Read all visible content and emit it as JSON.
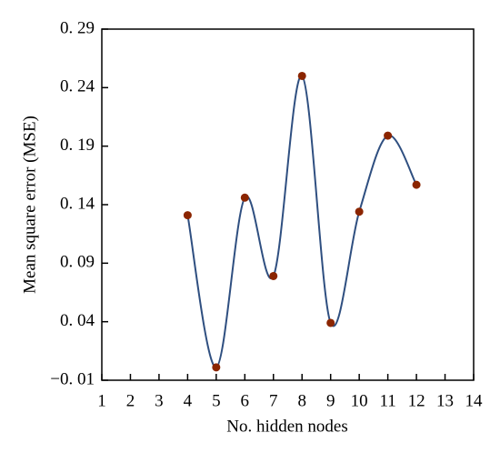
{
  "chart_data": {
    "type": "line",
    "xlabel": "No. hidden nodes",
    "ylabel": "Mean square error (MSE)",
    "x": [
      4,
      5,
      6,
      7,
      8,
      9,
      10,
      11,
      12
    ],
    "series": [
      {
        "color": "#2f4f80",
        "marker_color": "#8b2500",
        "values": [
          0.131,
          0.001,
          0.146,
          0.079,
          0.25,
          0.039,
          0.134,
          0.199,
          0.157
        ]
      }
    ],
    "xlim": [
      1,
      14
    ],
    "xticks": [
      1,
      2,
      3,
      4,
      5,
      6,
      7,
      8,
      9,
      10,
      11,
      12,
      13,
      14
    ],
    "ylim": [
      -0.01,
      0.29
    ],
    "yticks": [
      {
        "value": -0.01,
        "label": "−0. 01"
      },
      {
        "value": 0.04,
        "label": "0. 04"
      },
      {
        "value": 0.09,
        "label": "0. 09"
      },
      {
        "value": 0.14,
        "label": "0. 14"
      },
      {
        "value": 0.19,
        "label": "0. 19"
      },
      {
        "value": 0.24,
        "label": "0. 24"
      },
      {
        "value": 0.29,
        "label": "0. 29"
      }
    ],
    "smooth": true
  }
}
